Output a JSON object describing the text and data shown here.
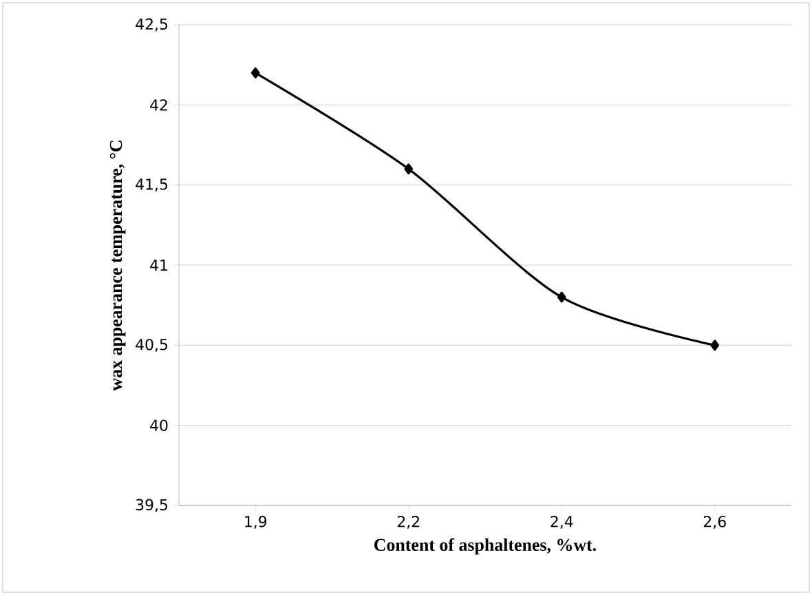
{
  "chart_data": {
    "type": "line",
    "xlabel": "Content of asphaltenes, %wt.",
    "ylabel": "wax appearance temperature,  °C",
    "categories": [
      "1,9",
      "2,2",
      "2,4",
      "2,6"
    ],
    "series": [
      {
        "color": "#000000",
        "values": [
          42.2,
          41.6,
          40.8,
          40.5
        ]
      }
    ],
    "ylim": [
      39.5,
      42.5
    ],
    "yticks": [
      {
        "value": 39.5,
        "label": "39,5"
      },
      {
        "value": 40,
        "label": "40"
      },
      {
        "value": 40.5,
        "label": "40,5"
      },
      {
        "value": 41,
        "label": "41"
      },
      {
        "value": 41.5,
        "label": "41,5"
      },
      {
        "value": 42,
        "label": "42"
      },
      {
        "value": 42.5,
        "label": "42,5"
      }
    ],
    "grid": "y",
    "marker": "diamond",
    "line_style": "solid"
  }
}
